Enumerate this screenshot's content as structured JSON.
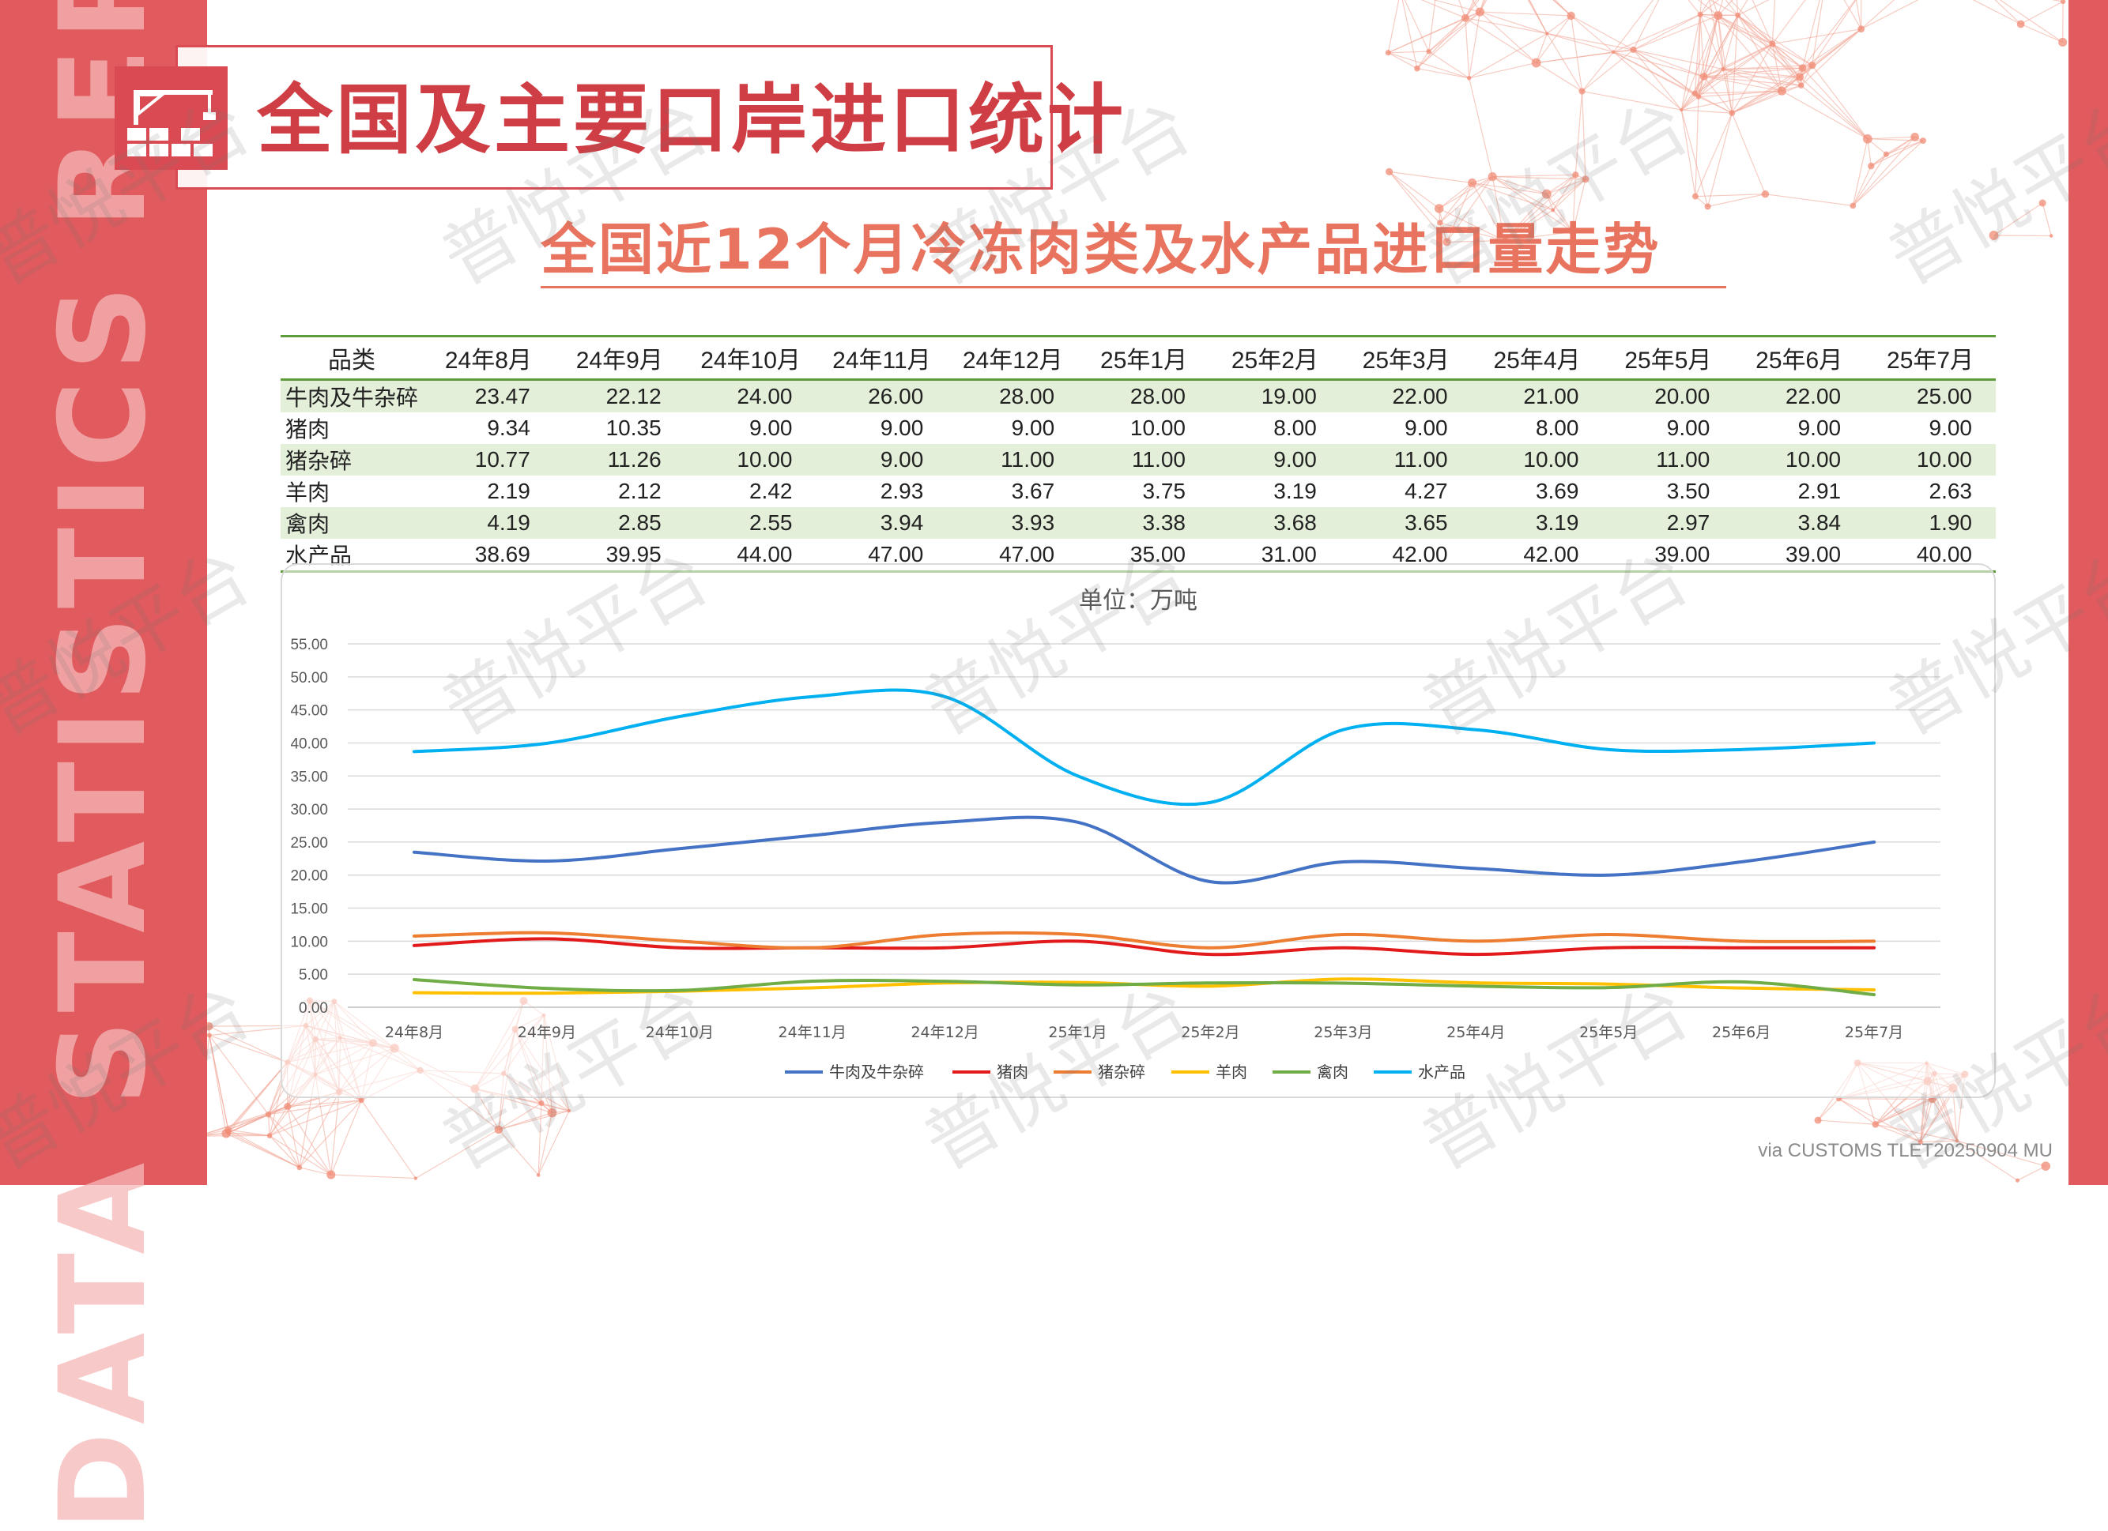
{
  "banner": {
    "vertical_text": "DATA STATISTICS REPORT"
  },
  "header": {
    "title": "全国及主要口岸进口统计",
    "icon": "warehouse-crane-icon"
  },
  "subtitle": "全国近12个月冷冻肉类及水产品进口量走势",
  "table": {
    "corner_label": "品类",
    "columns": [
      "24年8月",
      "24年9月",
      "24年10月",
      "24年11月",
      "24年12月",
      "25年1月",
      "25年2月",
      "25年3月",
      "25年4月",
      "25年5月",
      "25年6月",
      "25年7月"
    ],
    "rows": [
      {
        "name": "牛肉及牛杂碎",
        "values": [
          "23.47",
          "22.12",
          "24.00",
          "26.00",
          "28.00",
          "28.00",
          "19.00",
          "22.00",
          "21.00",
          "20.00",
          "22.00",
          "25.00"
        ]
      },
      {
        "name": "猪肉",
        "values": [
          "9.34",
          "10.35",
          "9.00",
          "9.00",
          "9.00",
          "10.00",
          "8.00",
          "9.00",
          "8.00",
          "9.00",
          "9.00",
          "9.00"
        ]
      },
      {
        "name": "猪杂碎",
        "values": [
          "10.77",
          "11.26",
          "10.00",
          "9.00",
          "11.00",
          "11.00",
          "9.00",
          "11.00",
          "10.00",
          "11.00",
          "10.00",
          "10.00"
        ]
      },
      {
        "name": "羊肉",
        "values": [
          "2.19",
          "2.12",
          "2.42",
          "2.93",
          "3.67",
          "3.75",
          "3.19",
          "4.27",
          "3.69",
          "3.50",
          "2.91",
          "2.63"
        ]
      },
      {
        "name": "禽肉",
        "values": [
          "4.19",
          "2.85",
          "2.55",
          "3.94",
          "3.93",
          "3.38",
          "3.68",
          "3.65",
          "3.19",
          "2.97",
          "3.84",
          "1.90"
        ]
      },
      {
        "name": "水产品",
        "values": [
          "38.69",
          "39.95",
          "44.00",
          "47.00",
          "47.00",
          "35.00",
          "31.00",
          "42.00",
          "42.00",
          "39.00",
          "39.00",
          "40.00"
        ]
      }
    ]
  },
  "chart_data": {
    "type": "line",
    "title": "单位：万吨",
    "categories": [
      "24年8月",
      "24年9月",
      "24年10月",
      "24年11月",
      "24年12月",
      "25年1月",
      "25年2月",
      "25年3月",
      "25年4月",
      "25年5月",
      "25年6月",
      "25年7月"
    ],
    "ylim": [
      0,
      55
    ],
    "yticks": [
      "0.00",
      "5.00",
      "10.00",
      "15.00",
      "20.00",
      "25.00",
      "30.00",
      "35.00",
      "40.00",
      "45.00",
      "50.00",
      "55.00"
    ],
    "grid": true,
    "legend_position": "bottom",
    "smooth": true,
    "series": [
      {
        "name": "牛肉及牛杂碎",
        "color": "#4472c4",
        "values": [
          23.47,
          22.12,
          24.0,
          26.0,
          28.0,
          28.0,
          19.0,
          22.0,
          21.0,
          20.0,
          22.0,
          25.0
        ]
      },
      {
        "name": "猪肉",
        "color": "#e31a1c",
        "values": [
          9.34,
          10.35,
          9.0,
          9.0,
          9.0,
          10.0,
          8.0,
          9.0,
          8.0,
          9.0,
          9.0,
          9.0
        ]
      },
      {
        "name": "猪杂碎",
        "color": "#ed7d31",
        "values": [
          10.77,
          11.26,
          10.0,
          9.0,
          11.0,
          11.0,
          9.0,
          11.0,
          10.0,
          11.0,
          10.0,
          10.0
        ]
      },
      {
        "name": "羊肉",
        "color": "#ffc000",
        "values": [
          2.19,
          2.12,
          2.42,
          2.93,
          3.67,
          3.75,
          3.19,
          4.27,
          3.69,
          3.5,
          2.91,
          2.63
        ]
      },
      {
        "name": "禽肉",
        "color": "#70ad47",
        "values": [
          4.19,
          2.85,
          2.55,
          3.94,
          3.93,
          3.38,
          3.68,
          3.65,
          3.19,
          2.97,
          3.84,
          1.9
        ]
      },
      {
        "name": "水产品",
        "color": "#00b0f0",
        "values": [
          38.69,
          39.95,
          44.0,
          47.0,
          47.0,
          35.0,
          31.0,
          42.0,
          42.0,
          39.0,
          39.0,
          40.0
        ]
      }
    ]
  },
  "watermark": "普悦平台",
  "source_note": "via CUSTOMS TLET20250904 MU",
  "colors": {
    "accent": "#d94a52",
    "table_rule": "#5e9b3a",
    "table_band": "#e3efd9",
    "subtitle": "#e8745f"
  }
}
